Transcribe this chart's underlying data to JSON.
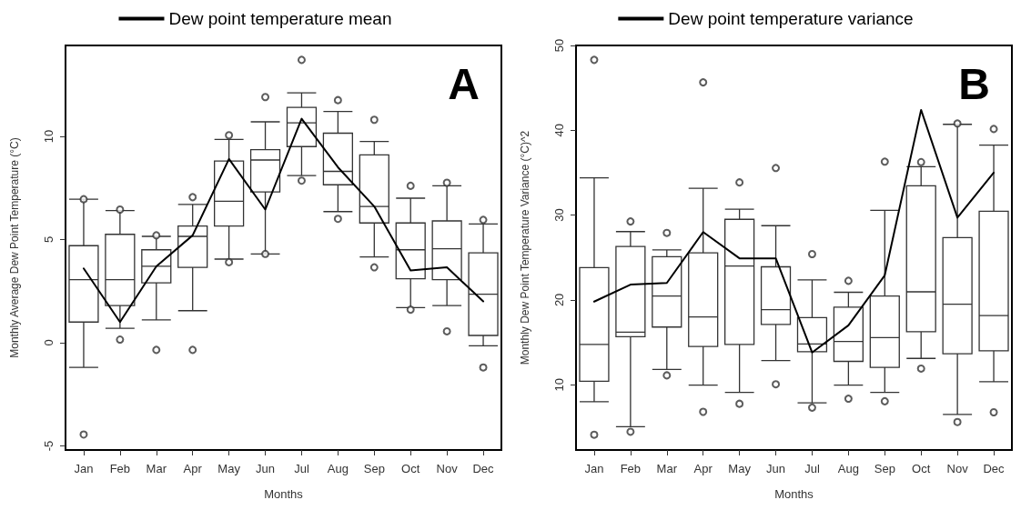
{
  "chart_data": [
    {
      "type": "box",
      "xlabel": "Months",
      "ylabel": "Monthly Average Dew Point Temperature (°C)",
      "annotations": [
        "A"
      ],
      "categories": [
        "Jan",
        "Feb",
        "Mar",
        "Apr",
        "May",
        "Jun",
        "Jul",
        "Aug",
        "Sep",
        "Oct",
        "Nov",
        "Dec"
      ],
      "ylim": [
        -5.2,
        14.4
      ],
      "yticks": [
        -5,
        0,
        5,
        10
      ],
      "grid": false,
      "legend": "top",
      "marker": "none",
      "line_style": "solid",
      "series": [
        {
          "type": "box",
          "color": "#333333",
          "boxes": [
            {
              "low": -1.2,
              "q1": 1.0,
              "median": 3.05,
              "q3": 4.7,
              "high": 6.95,
              "outliers": [
                -4.45,
                6.95
              ]
            },
            {
              "low": 0.7,
              "q1": 1.8,
              "median": 3.05,
              "q3": 5.25,
              "high": 6.4,
              "outliers": [
                0.15,
                6.45
              ]
            },
            {
              "low": 1.1,
              "q1": 2.9,
              "median": 3.7,
              "q3": 4.5,
              "high": 5.15,
              "outliers": [
                -0.35,
                5.2
              ]
            },
            {
              "low": 1.55,
              "q1": 3.65,
              "median": 5.15,
              "q3": 5.65,
              "high": 6.7,
              "outliers": [
                -0.35,
                7.05
              ]
            },
            {
              "low": 4.05,
              "q1": 5.65,
              "median": 6.85,
              "q3": 8.8,
              "high": 9.85,
              "outliers": [
                3.9,
                10.05
              ]
            },
            {
              "low": 4.3,
              "q1": 7.3,
              "median": 8.85,
              "q3": 9.35,
              "high": 10.7,
              "outliers": [
                4.3,
                11.9
              ]
            },
            {
              "low": 8.1,
              "q1": 9.5,
              "median": 10.65,
              "q3": 11.4,
              "high": 12.1,
              "outliers": [
                7.85,
                13.7
              ]
            },
            {
              "low": 6.35,
              "q1": 7.65,
              "median": 8.3,
              "q3": 10.15,
              "high": 11.2,
              "outliers": [
                6.0,
                11.75
              ]
            },
            {
              "low": 4.15,
              "q1": 5.8,
              "median": 6.6,
              "q3": 9.1,
              "high": 9.75,
              "outliers": [
                3.65,
                10.8
              ]
            },
            {
              "low": 1.7,
              "q1": 3.1,
              "median": 4.5,
              "q3": 5.8,
              "high": 7.0,
              "outliers": [
                1.6,
                7.6
              ]
            },
            {
              "low": 1.8,
              "q1": 3.05,
              "median": 4.55,
              "q3": 5.9,
              "high": 7.6,
              "outliers": [
                0.55,
                7.75
              ]
            },
            {
              "low": -0.15,
              "q1": 0.35,
              "median": 2.35,
              "q3": 4.35,
              "high": 5.75,
              "outliers": [
                -1.2,
                5.95
              ]
            }
          ]
        },
        {
          "type": "line",
          "name": "Dew point temperature mean",
          "color": "#000000",
          "values": [
            3.6,
            1.0,
            3.7,
            5.2,
            8.9,
            6.45,
            10.85,
            8.5,
            6.6,
            3.5,
            3.65,
            2.0
          ]
        }
      ]
    },
    {
      "type": "box",
      "xlabel": "Months",
      "ylabel": "Monthly Dew Point Temperature Variance (°C)^2",
      "annotations": [
        "B"
      ],
      "categories": [
        "Jan",
        "Feb",
        "Mar",
        "Apr",
        "May",
        "Jun",
        "Jul",
        "Aug",
        "Sep",
        "Oct",
        "Nov",
        "Dec"
      ],
      "ylim": [
        2.3,
        50
      ],
      "yticks": [
        10,
        20,
        30,
        40,
        50
      ],
      "grid": false,
      "legend": "top",
      "marker": "none",
      "line_style": "solid",
      "series": [
        {
          "type": "box",
          "color": "#333333",
          "boxes": [
            {
              "low": 8.0,
              "q1": 10.4,
              "median": 14.75,
              "q3": 23.8,
              "high": 34.4,
              "outliers": [
                4.1,
                48.3
              ]
            },
            {
              "low": 5.05,
              "q1": 15.65,
              "median": 16.2,
              "q3": 26.3,
              "high": 28.05,
              "outliers": [
                4.45,
                29.25
              ]
            },
            {
              "low": 11.8,
              "q1": 16.8,
              "median": 20.45,
              "q3": 25.1,
              "high": 25.9,
              "outliers": [
                11.1,
                27.9
              ]
            },
            {
              "low": 9.95,
              "q1": 14.5,
              "median": 18.0,
              "q3": 25.55,
              "high": 33.15,
              "outliers": [
                6.8,
                45.65
              ]
            },
            {
              "low": 9.1,
              "q1": 14.75,
              "median": 24.0,
              "q3": 29.5,
              "high": 30.7,
              "outliers": [
                7.75,
                33.85
              ]
            },
            {
              "low": 12.85,
              "q1": 17.1,
              "median": 18.85,
              "q3": 23.9,
              "high": 28.75,
              "outliers": [
                10.05,
                35.55
              ]
            },
            {
              "low": 7.85,
              "q1": 13.9,
              "median": 14.8,
              "q3": 17.9,
              "high": 22.35,
              "outliers": [
                7.3,
                25.4
              ]
            },
            {
              "low": 9.95,
              "q1": 12.75,
              "median": 15.1,
              "q3": 19.15,
              "high": 20.9,
              "outliers": [
                8.35,
                22.25
              ]
            },
            {
              "low": 9.1,
              "q1": 12.05,
              "median": 15.55,
              "q3": 20.45,
              "high": 30.55,
              "outliers": [
                8.05,
                36.3
              ]
            },
            {
              "low": 13.1,
              "q1": 16.25,
              "median": 20.95,
              "q3": 33.45,
              "high": 35.7,
              "outliers": [
                11.9,
                36.25
              ]
            },
            {
              "low": 6.5,
              "q1": 13.65,
              "median": 19.5,
              "q3": 27.35,
              "high": 40.7,
              "outliers": [
                5.6,
                40.8
              ]
            },
            {
              "low": 10.35,
              "q1": 14.0,
              "median": 18.15,
              "q3": 30.45,
              "high": 38.25,
              "outliers": [
                6.75,
                40.15
              ]
            }
          ]
        },
        {
          "type": "line",
          "name": "Dew point temperature variance",
          "color": "#000000",
          "values": [
            19.8,
            21.8,
            22.0,
            28.0,
            24.9,
            24.9,
            13.8,
            17.0,
            22.9,
            42.4,
            29.7,
            35.0
          ]
        }
      ]
    }
  ]
}
